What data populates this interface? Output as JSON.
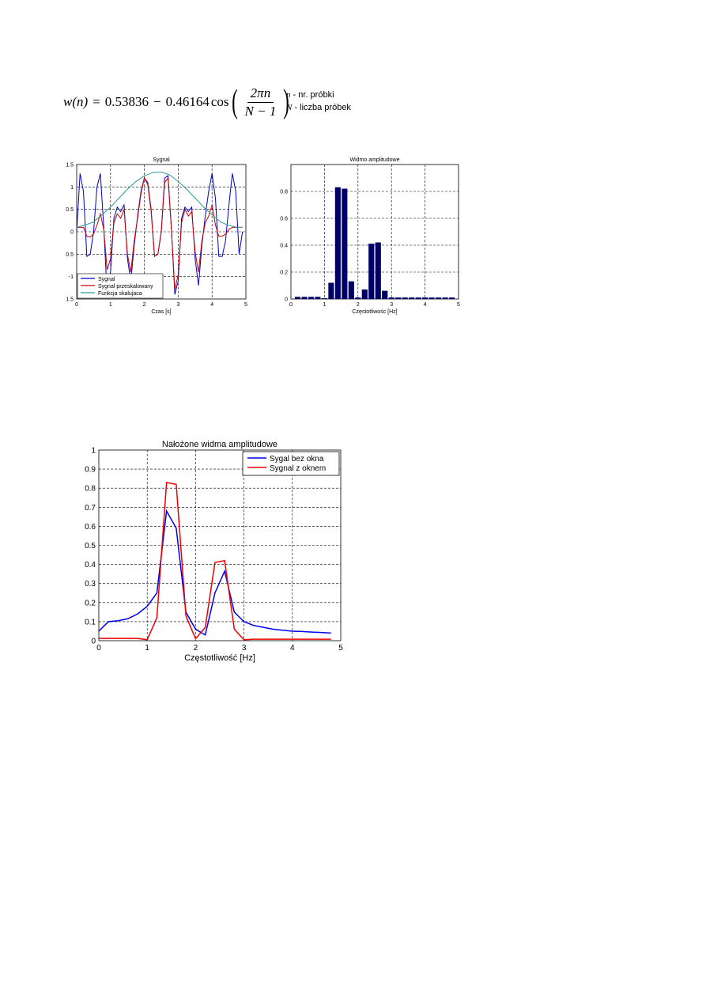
{
  "formula": {
    "lhs": "w(n)",
    "eq": "=",
    "c0": "0.53836",
    "minus": "−",
    "c1": "0.46164",
    "cos": "cos",
    "numerator": "2πn",
    "denominator": "N − 1"
  },
  "definitions": [
    {
      "symbol": "n",
      "text": " - nr. próbki"
    },
    {
      "symbol": "N",
      "text": " - liczba próbek"
    }
  ],
  "chart_data": [
    {
      "type": "line",
      "title": "Sygnal",
      "xlabel": "Czas [s]",
      "ylabel": "",
      "xlim": [
        0,
        5
      ],
      "ylim": [
        -1.5,
        1.5
      ],
      "xticks": [
        "0",
        "1",
        "2",
        "3",
        "4",
        "5"
      ],
      "yticks": [
        "1.5",
        "1",
        "0.5",
        "0",
        "0.5",
        "-1",
        "1.5"
      ],
      "grid": true,
      "legend_position": "bottom-left",
      "series": [
        {
          "name": "Sygnal",
          "color": "#0000cc",
          "x": [
            0,
            0.1,
            0.2,
            0.3,
            0.4,
            0.5,
            0.6,
            0.7,
            0.8,
            0.9,
            1.0,
            1.1,
            1.2,
            1.3,
            1.4,
            1.5,
            1.6,
            1.7,
            1.8,
            1.9,
            2.0,
            2.1,
            2.2,
            2.3,
            2.4,
            2.5,
            2.6,
            2.7,
            2.8,
            2.9,
            3.0,
            3.1,
            3.2,
            3.3,
            3.4,
            3.5,
            3.6,
            3.7,
            3.8,
            3.9,
            4.0,
            4.1,
            4.2,
            4.3,
            4.4,
            4.5,
            4.6,
            4.7,
            4.8,
            4.9
          ],
          "y": [
            0,
            1.3,
            0.9,
            -0.55,
            -0.5,
            0,
            1.0,
            1.3,
            0.1,
            -1.4,
            -0.9,
            0.3,
            0.55,
            0.45,
            0.6,
            -0.6,
            -1.1,
            -0.3,
            0.35,
            0.9,
            1.2,
            1.1,
            0.5,
            -0.55,
            -0.5,
            0,
            1.2,
            1.25,
            0.05,
            -1.4,
            -1.1,
            0.3,
            0.55,
            0.45,
            0.55,
            -0.6,
            -1.2,
            -0.3,
            0.35,
            0.9,
            1.3,
            0.75,
            -0.55,
            -0.55,
            -0.2,
            0.6,
            1.3,
            0.9,
            -0.5,
            0
          ]
        },
        {
          "name": "Sygnal przeskalowany",
          "color": "#cc0000",
          "x": [
            0,
            0.1,
            0.2,
            0.3,
            0.4,
            0.5,
            0.6,
            0.7,
            0.8,
            0.9,
            1.0,
            1.1,
            1.2,
            1.3,
            1.4,
            1.5,
            1.6,
            1.7,
            1.8,
            1.9,
            2.0,
            2.1,
            2.2,
            2.3,
            2.4,
            2.5,
            2.6,
            2.7,
            2.8,
            2.9,
            3.0,
            3.1,
            3.2,
            3.3,
            3.4,
            3.5,
            3.6,
            3.7,
            3.8,
            3.9,
            4.0,
            4.1,
            4.2,
            4.3,
            4.4,
            4.5,
            4.6,
            4.7,
            4.8,
            4.9
          ],
          "y": [
            0.1,
            0.1,
            0.1,
            -0.1,
            -0.12,
            -0.05,
            0.15,
            0.4,
            0.05,
            -0.85,
            -0.6,
            0.2,
            0.4,
            0.3,
            0.5,
            -0.5,
            -0.9,
            -0.2,
            0.3,
            0.85,
            1.2,
            1.05,
            0.45,
            -0.55,
            -0.5,
            0,
            1.1,
            1.2,
            0.05,
            -1.3,
            -0.95,
            0.2,
            0.5,
            0.35,
            0.45,
            -0.45,
            -0.9,
            -0.2,
            0.2,
            0.35,
            0.6,
            0.15,
            -0.1,
            -0.1,
            -0.05,
            0.05,
            0.1,
            0.1,
            0.1,
            0.1
          ]
        },
        {
          "name": "Funkcja skalujaca",
          "color": "#2a9a9a",
          "x": [
            0,
            0.25,
            0.5,
            0.75,
            1.0,
            1.25,
            1.5,
            1.75,
            2.0,
            2.25,
            2.5,
            2.75,
            3.0,
            3.25,
            3.5,
            3.75,
            4.0,
            4.25,
            4.5,
            4.75,
            4.9
          ],
          "y": [
            0.1,
            0.15,
            0.22,
            0.38,
            0.55,
            0.75,
            0.95,
            1.12,
            1.25,
            1.32,
            1.33,
            1.27,
            1.12,
            0.95,
            0.75,
            0.55,
            0.38,
            0.22,
            0.14,
            0.1,
            0.1
          ]
        }
      ]
    },
    {
      "type": "bar",
      "title": "Widmo amplitudowe",
      "xlabel": "Częstotliwośc [Hz]",
      "ylabel": "",
      "xlim": [
        0,
        5
      ],
      "ylim": [
        0,
        1
      ],
      "xticks": [
        "0",
        "1",
        "2",
        "3",
        "4",
        "5"
      ],
      "yticks": [
        "0",
        "0.2",
        "0.4",
        "0.6",
        "0.8"
      ],
      "grid": true,
      "color": "#000066",
      "x": [
        0.2,
        0.4,
        0.6,
        0.8,
        1.0,
        1.2,
        1.4,
        1.6,
        1.8,
        2.0,
        2.2,
        2.4,
        2.6,
        2.8,
        3.0,
        3.2,
        3.4,
        3.6,
        3.8,
        4.0,
        4.2,
        4.4,
        4.6,
        4.8
      ],
      "values": [
        0.015,
        0.015,
        0.015,
        0.015,
        0.005,
        0.12,
        0.83,
        0.82,
        0.13,
        0.01,
        0.07,
        0.41,
        0.42,
        0.06,
        0.01,
        0.01,
        0.01,
        0.01,
        0.01,
        0.01,
        0.01,
        0.01,
        0.01,
        0.01
      ]
    },
    {
      "type": "line",
      "title": "Nałożone widma amplitudowe",
      "xlabel": "Częstotliwość [Hz]",
      "ylabel": "",
      "xlim": [
        0,
        5
      ],
      "ylim": [
        0,
        1
      ],
      "xticks": [
        "0",
        "1",
        "2",
        "3",
        "4",
        "5"
      ],
      "yticks": [
        "0",
        "0.1",
        "0.2",
        "0.3",
        "0.4",
        "0.5",
        "0.6",
        "0.7",
        "0.8",
        "0.9",
        "1"
      ],
      "grid": true,
      "legend_position": "top-right",
      "series": [
        {
          "name": "Sygal bez okna",
          "color": "#0000ee",
          "x": [
            0,
            0.2,
            0.4,
            0.6,
            0.8,
            1.0,
            1.2,
            1.4,
            1.6,
            1.8,
            2.0,
            2.2,
            2.4,
            2.6,
            2.8,
            3.0,
            3.2,
            3.4,
            3.6,
            3.8,
            4.0,
            4.2,
            4.4,
            4.6,
            4.8
          ],
          "y": [
            0.05,
            0.1,
            0.105,
            0.115,
            0.14,
            0.18,
            0.25,
            0.68,
            0.59,
            0.15,
            0.06,
            0.03,
            0.25,
            0.365,
            0.15,
            0.1,
            0.08,
            0.07,
            0.06,
            0.055,
            0.05,
            0.048,
            0.045,
            0.043,
            0.04
          ]
        },
        {
          "name": "Sygnal z oknem",
          "color": "#ee0000",
          "x": [
            0,
            0.2,
            0.4,
            0.6,
            0.8,
            1.0,
            1.2,
            1.4,
            1.6,
            1.8,
            2.0,
            2.2,
            2.4,
            2.6,
            2.8,
            3.0,
            3.2,
            3.4,
            3.6,
            3.8,
            4.0,
            4.2,
            4.4,
            4.6,
            4.8
          ],
          "y": [
            0.012,
            0.012,
            0.012,
            0.012,
            0.012,
            0.005,
            0.12,
            0.83,
            0.82,
            0.13,
            0.01,
            0.07,
            0.41,
            0.42,
            0.06,
            0.005,
            0.008,
            0.008,
            0.008,
            0.008,
            0.008,
            0.008,
            0.008,
            0.008,
            0.008
          ]
        }
      ]
    }
  ]
}
